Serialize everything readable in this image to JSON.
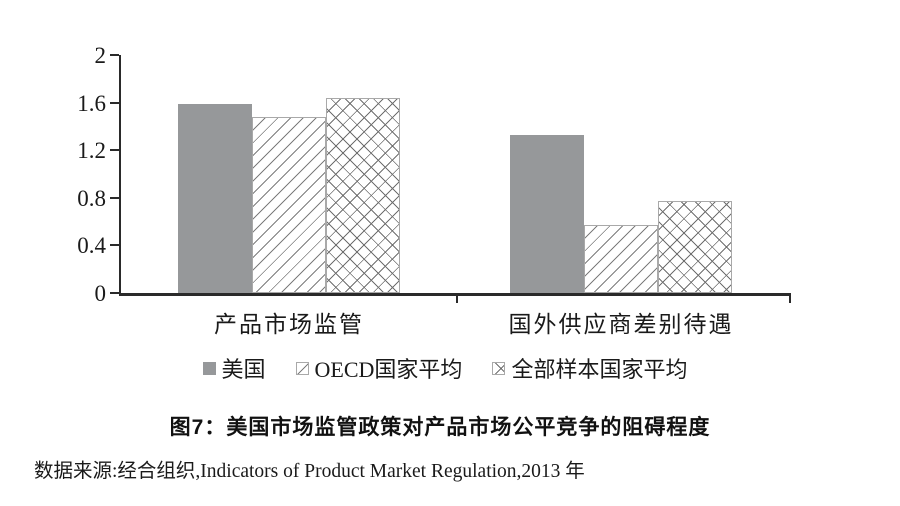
{
  "chart_data": {
    "type": "bar",
    "categories": [
      "产品市场监管",
      "国外供应商差别待遇"
    ],
    "series": [
      {
        "name": "美国",
        "pattern": "solid",
        "values": [
          1.59,
          1.33
        ]
      },
      {
        "name": "OECD国家平均",
        "pattern": "diagonal",
        "values": [
          1.48,
          0.57
        ]
      },
      {
        "name": "全部样本国家平均",
        "pattern": "crosshatch",
        "values": [
          1.64,
          0.77
        ]
      }
    ],
    "title": "图7：美国市场监管政策对产品市场公平竞争的阻碍程度",
    "xlabel": "",
    "ylabel": "",
    "ylim": [
      0,
      2
    ],
    "yticks": [
      0,
      0.4,
      0.8,
      1.2,
      1.6,
      2
    ],
    "ytick_labels": [
      "0",
      "0.4",
      "0.8",
      "1.2",
      "1.6",
      "2"
    ],
    "grid": false,
    "legend_position": "bottom"
  },
  "caption": {
    "title": "图7：美国市场监管政策对产品市场公平竞争的阻碍程度",
    "source": "数据来源:经合组织,Indicators of Product Market Regulation,2013 年"
  },
  "colors": {
    "us_bar": "#96989a",
    "hatch_line": "#6f6f6f",
    "axis": "#2a2a2a",
    "text": "#1a1a1a"
  }
}
